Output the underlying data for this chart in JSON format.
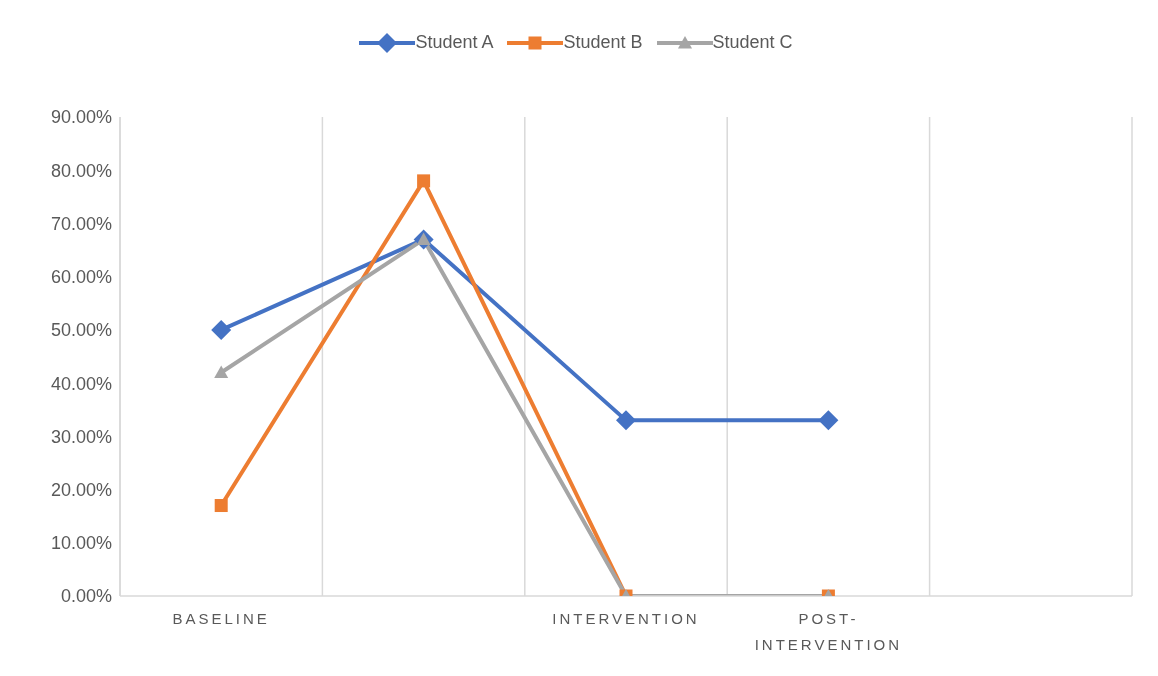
{
  "chart_data": {
    "type": "line",
    "categories": [
      "BASELINE",
      null,
      "INTERVENTION",
      "POST-INTERVENTION",
      null
    ],
    "series": [
      {
        "name": "Student A",
        "color": "#4472c4",
        "marker": "diamond",
        "values": [
          50,
          67,
          33,
          33,
          null
        ]
      },
      {
        "name": "Student B",
        "color": "#ed7d31",
        "marker": "square",
        "values": [
          17,
          78,
          0,
          0,
          null
        ]
      },
      {
        "name": "Student C",
        "color": "#a5a5a5",
        "marker": "triangle",
        "values": [
          42,
          67,
          0,
          0,
          null
        ]
      }
    ],
    "ylim": [
      0,
      90
    ],
    "yticks": [
      {
        "value": 0,
        "label": "0.00%"
      },
      {
        "value": 10,
        "label": "10.00%"
      },
      {
        "value": 20,
        "label": "20.00%"
      },
      {
        "value": 30,
        "label": "30.00%"
      },
      {
        "value": 40,
        "label": "40.00%"
      },
      {
        "value": 50,
        "label": "50.00%"
      },
      {
        "value": 60,
        "label": "60.00%"
      },
      {
        "value": 70,
        "label": "70.00%"
      },
      {
        "value": 80,
        "label": "80.00%"
      },
      {
        "value": 90,
        "label": "90.00%"
      }
    ],
    "grid": "x",
    "legend": "top",
    "line_style": "solid"
  }
}
